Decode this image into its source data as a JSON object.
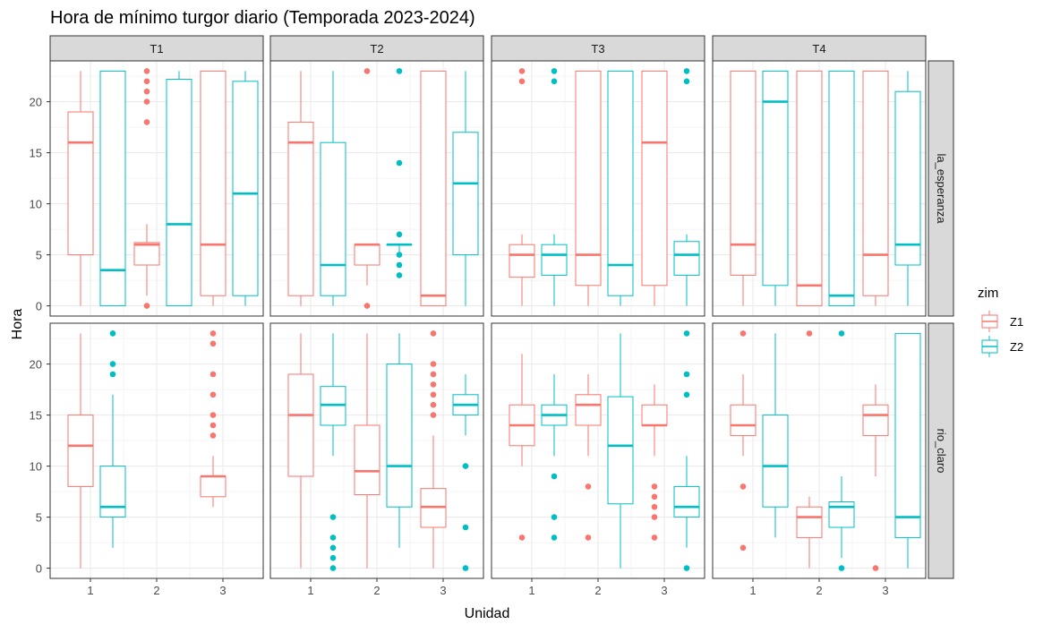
{
  "chart_data": {
    "type": "boxplot",
    "title": "Hora de mínimo turgor diario (Temporada 2023-2024)",
    "xlabel": "Unidad",
    "ylabel": "Hora",
    "ylim": [
      -1,
      24
    ],
    "yticks": [
      0,
      5,
      10,
      15,
      20
    ],
    "categories": [
      "1",
      "2",
      "3"
    ],
    "facet_columns": [
      "T1",
      "T2",
      "T3",
      "T4"
    ],
    "facet_rows": [
      "la_esperanza",
      "rio_claro"
    ],
    "grid": true,
    "legend": {
      "title": "zim",
      "position": "right",
      "entries": [
        {
          "name": "Z1",
          "color": "#F8766D"
        },
        {
          "name": "Z2",
          "color": "#00BFC4"
        }
      ]
    },
    "panels": [
      {
        "row": "la_esperanza",
        "col": "T1",
        "boxes": [
          {
            "x": "1",
            "group": "Z1",
            "lw": 0,
            "q1": 5,
            "med": 16,
            "q3": 19,
            "uw": 23,
            "out": []
          },
          {
            "x": "1",
            "group": "Z2",
            "lw": 0,
            "q1": 0,
            "med": 3.5,
            "q3": 23,
            "uw": 23,
            "out": []
          },
          {
            "x": "2",
            "group": "Z1",
            "lw": 1,
            "q1": 4,
            "med": 6,
            "q3": 6.2,
            "uw": 8,
            "out": [
              0,
              18,
              20,
              21,
              22,
              23
            ]
          },
          {
            "x": "2",
            "group": "Z2",
            "lw": 0,
            "q1": 0,
            "med": 8,
            "q3": 22.2,
            "uw": 23,
            "out": []
          },
          {
            "x": "3",
            "group": "Z1",
            "lw": 0,
            "q1": 1,
            "med": 6,
            "q3": 23,
            "uw": 23,
            "out": []
          },
          {
            "x": "3",
            "group": "Z2",
            "lw": 0,
            "q1": 1,
            "med": 11,
            "q3": 22,
            "uw": 23,
            "out": []
          }
        ]
      },
      {
        "row": "la_esperanza",
        "col": "T2",
        "boxes": [
          {
            "x": "1",
            "group": "Z1",
            "lw": 0,
            "q1": 1,
            "med": 16,
            "q3": 18,
            "uw": 23,
            "out": []
          },
          {
            "x": "1",
            "group": "Z2",
            "lw": 0,
            "q1": 1,
            "med": 4,
            "q3": 16,
            "uw": 23,
            "out": []
          },
          {
            "x": "2",
            "group": "Z1",
            "lw": 2,
            "q1": 4,
            "med": 6,
            "q3": 6,
            "uw": 6,
            "out": [
              0,
              23
            ]
          },
          {
            "x": "2",
            "group": "Z2",
            "lw": 5,
            "q1": 6,
            "med": 6,
            "q3": 6,
            "uw": 6,
            "out": [
              3,
              4,
              5,
              7,
              14,
              23
            ]
          },
          {
            "x": "3",
            "group": "Z1",
            "lw": 0,
            "q1": 0,
            "med": 1,
            "q3": 23,
            "uw": 23,
            "out": []
          },
          {
            "x": "3",
            "group": "Z2",
            "lw": 0,
            "q1": 5,
            "med": 12,
            "q3": 17,
            "uw": 23,
            "out": []
          }
        ]
      },
      {
        "row": "la_esperanza",
        "col": "T3",
        "boxes": [
          {
            "x": "1",
            "group": "Z1",
            "lw": 0,
            "q1": 2.8,
            "med": 5,
            "q3": 6,
            "uw": 7,
            "out": [
              22,
              23
            ]
          },
          {
            "x": "1",
            "group": "Z2",
            "lw": 0,
            "q1": 3,
            "med": 5,
            "q3": 6,
            "uw": 7,
            "out": [
              22,
              23
            ]
          },
          {
            "x": "2",
            "group": "Z1",
            "lw": 0,
            "q1": 2,
            "med": 5,
            "q3": 23,
            "uw": 23,
            "out": []
          },
          {
            "x": "2",
            "group": "Z2",
            "lw": 0,
            "q1": 1,
            "med": 4,
            "q3": 23,
            "uw": 23,
            "out": []
          },
          {
            "x": "3",
            "group": "Z1",
            "lw": 0,
            "q1": 2,
            "med": 16,
            "q3": 23,
            "uw": 23,
            "out": []
          },
          {
            "x": "3",
            "group": "Z2",
            "lw": 0,
            "q1": 3,
            "med": 5,
            "q3": 6.3,
            "uw": 7,
            "out": [
              22,
              23
            ]
          }
        ]
      },
      {
        "row": "la_esperanza",
        "col": "T4",
        "boxes": [
          {
            "x": "1",
            "group": "Z1",
            "lw": 0,
            "q1": 3,
            "med": 6,
            "q3": 23,
            "uw": 23,
            "out": []
          },
          {
            "x": "1",
            "group": "Z2",
            "lw": 0,
            "q1": 2,
            "med": 20,
            "q3": 23,
            "uw": 23,
            "out": []
          },
          {
            "x": "2",
            "group": "Z1",
            "lw": 0,
            "q1": 0,
            "med": 2,
            "q3": 23,
            "uw": 23,
            "out": []
          },
          {
            "x": "2",
            "group": "Z2",
            "lw": 0,
            "q1": 0,
            "med": 1,
            "q3": 23,
            "uw": 23,
            "out": []
          },
          {
            "x": "3",
            "group": "Z1",
            "lw": 0,
            "q1": 1,
            "med": 5,
            "q3": 23,
            "uw": 23,
            "out": []
          },
          {
            "x": "3",
            "group": "Z2",
            "lw": 0,
            "q1": 4,
            "med": 6,
            "q3": 21,
            "uw": 23,
            "out": []
          }
        ]
      },
      {
        "row": "rio_claro",
        "col": "T1",
        "boxes": [
          {
            "x": "1",
            "group": "Z1",
            "lw": 0,
            "q1": 8,
            "med": 12,
            "q3": 15,
            "uw": 23,
            "out": []
          },
          {
            "x": "1",
            "group": "Z2",
            "lw": 2,
            "q1": 5,
            "med": 6,
            "q3": 10,
            "uw": 17,
            "out": [
              19,
              20,
              23
            ]
          },
          {
            "x": "3",
            "group": "Z1",
            "lw": 6,
            "q1": 7,
            "med": 9,
            "q3": 9,
            "uw": 11,
            "out": [
              13,
              14,
              15,
              17,
              19,
              22,
              23
            ]
          }
        ]
      },
      {
        "row": "rio_claro",
        "col": "T2",
        "boxes": [
          {
            "x": "1",
            "group": "Z1",
            "lw": 0,
            "q1": 9,
            "med": 15,
            "q3": 19,
            "uw": 23,
            "out": []
          },
          {
            "x": "1",
            "group": "Z2",
            "lw": 11,
            "q1": 14,
            "med": 16,
            "q3": 17.8,
            "uw": 23,
            "out": [
              0,
              1,
              2,
              3,
              5
            ]
          },
          {
            "x": "2",
            "group": "Z1",
            "lw": 0,
            "q1": 7.2,
            "med": 9.5,
            "q3": 14,
            "uw": 23,
            "out": []
          },
          {
            "x": "2",
            "group": "Z2",
            "lw": 2,
            "q1": 6,
            "med": 10,
            "q3": 20,
            "uw": 23,
            "out": []
          },
          {
            "x": "3",
            "group": "Z1",
            "lw": 0,
            "q1": 4,
            "med": 6,
            "q3": 7.8,
            "uw": 13,
            "out": [
              15,
              16,
              17,
              18,
              19,
              20,
              23
            ]
          },
          {
            "x": "3",
            "group": "Z2",
            "lw": 13,
            "q1": 15,
            "med": 16,
            "q3": 17,
            "uw": 19,
            "out": [
              0,
              4,
              10
            ]
          }
        ]
      },
      {
        "row": "rio_claro",
        "col": "T3",
        "boxes": [
          {
            "x": "1",
            "group": "Z1",
            "lw": 10,
            "q1": 12,
            "med": 14,
            "q3": 16,
            "uw": 21,
            "out": [
              3
            ]
          },
          {
            "x": "1",
            "group": "Z2",
            "lw": 11,
            "q1": 14,
            "med": 15,
            "q3": 16,
            "uw": 19,
            "out": [
              3,
              5,
              9
            ]
          },
          {
            "x": "2",
            "group": "Z1",
            "lw": 11,
            "q1": 14,
            "med": 16,
            "q3": 17,
            "uw": 19,
            "out": [
              3,
              8
            ]
          },
          {
            "x": "2",
            "group": "Z2",
            "lw": 0,
            "q1": 6.3,
            "med": 12,
            "q3": 16.8,
            "uw": 23,
            "out": []
          },
          {
            "x": "3",
            "group": "Z1",
            "lw": 11,
            "q1": 14,
            "med": 14,
            "q3": 16,
            "uw": 18,
            "out": [
              3,
              5,
              6,
              7,
              8
            ]
          },
          {
            "x": "3",
            "group": "Z2",
            "lw": 2,
            "q1": 5,
            "med": 6,
            "q3": 8,
            "uw": 11,
            "out": [
              0,
              17,
              19,
              23
            ]
          }
        ]
      },
      {
        "row": "rio_claro",
        "col": "T4",
        "boxes": [
          {
            "x": "1",
            "group": "Z1",
            "lw": 11,
            "q1": 13,
            "med": 14,
            "q3": 16,
            "uw": 19,
            "out": [
              2,
              8,
              23
            ]
          },
          {
            "x": "1",
            "group": "Z2",
            "lw": 3,
            "q1": 6,
            "med": 10,
            "q3": 15,
            "uw": 23,
            "out": []
          },
          {
            "x": "2",
            "group": "Z1",
            "lw": 0,
            "q1": 3,
            "med": 5,
            "q3": 6,
            "uw": 7,
            "out": [
              23
            ]
          },
          {
            "x": "2",
            "group": "Z2",
            "lw": 1,
            "q1": 4,
            "med": 6,
            "q3": 6.5,
            "uw": 9,
            "out": [
              0,
              23
            ]
          },
          {
            "x": "3",
            "group": "Z1",
            "lw": 9,
            "q1": 13,
            "med": 15,
            "q3": 16,
            "uw": 18,
            "out": [
              0
            ]
          },
          {
            "x": "3",
            "group": "Z2",
            "lw": 0,
            "q1": 3,
            "med": 5,
            "q3": 23,
            "uw": 23,
            "out": []
          }
        ]
      }
    ]
  }
}
